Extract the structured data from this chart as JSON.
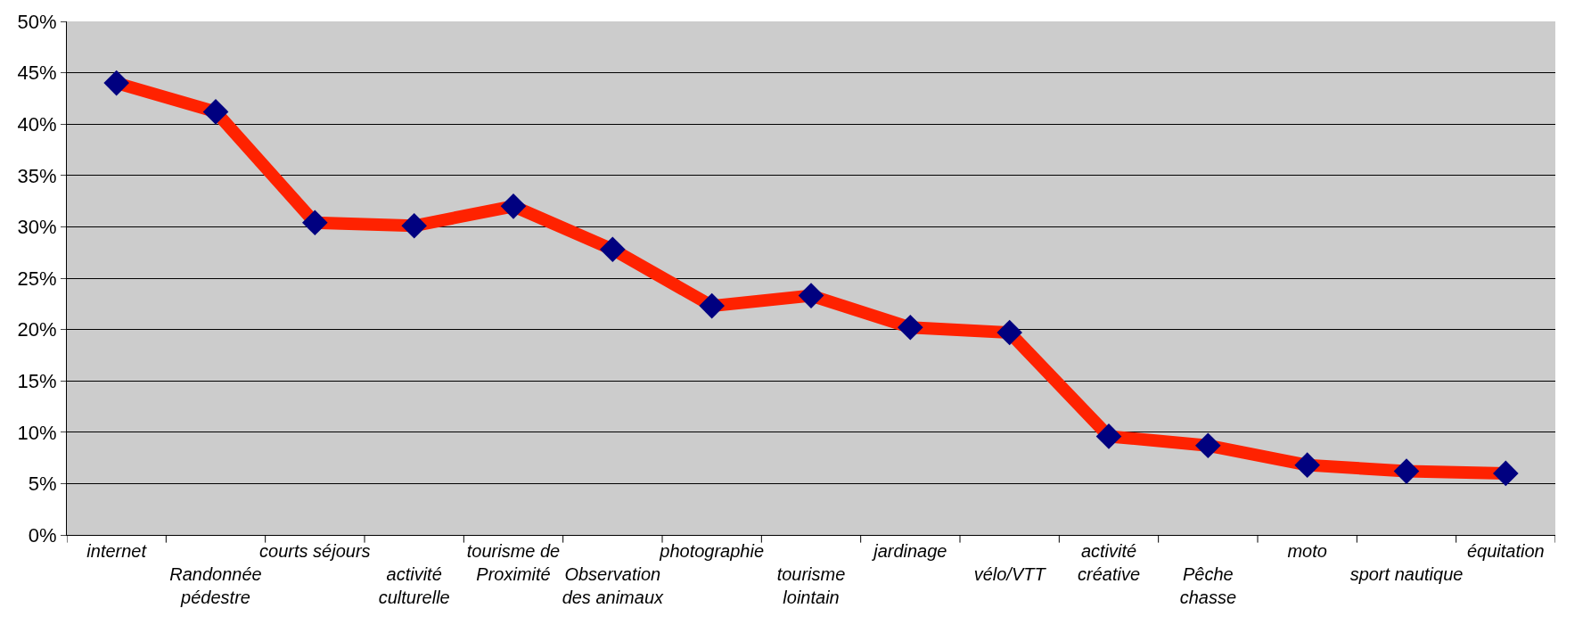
{
  "chart_data": {
    "type": "line",
    "categories": [
      "internet",
      "Randonnée\npédestre",
      "courts séjours",
      "activité\nculturelle",
      "tourisme de\nProximité",
      "Observation\ndes animaux",
      "photographie",
      "tourisme\nlointain",
      "jardinage",
      "vélo/VTT",
      "activité\ncréative",
      "Pêche\nchasse",
      "moto",
      "sport nautique",
      "équitation"
    ],
    "series": [
      {
        "color": "#ff2200",
        "values": [
          44,
          41.2,
          30.4,
          30.1,
          32,
          27.8,
          22.3,
          23.3,
          20.2,
          19.7,
          9.6,
          8.7,
          6.8,
          6.2,
          6.0
        ]
      }
    ],
    "ylim": [
      0,
      50
    ],
    "yticks": [
      {
        "value": 0,
        "label": "0%"
      },
      {
        "value": 5,
        "label": "5%"
      },
      {
        "value": 10,
        "label": "10%"
      },
      {
        "value": 15,
        "label": "15%"
      },
      {
        "value": 20,
        "label": "20%"
      },
      {
        "value": 25,
        "label": "25%"
      },
      {
        "value": 30,
        "label": "30%"
      },
      {
        "value": 35,
        "label": "35%"
      },
      {
        "value": 40,
        "label": "40%"
      },
      {
        "value": 45,
        "label": "45%"
      },
      {
        "value": 50,
        "label": "50%"
      }
    ],
    "grid": "y",
    "marker": "diamond",
    "line_style": "solid",
    "legend": false
  }
}
